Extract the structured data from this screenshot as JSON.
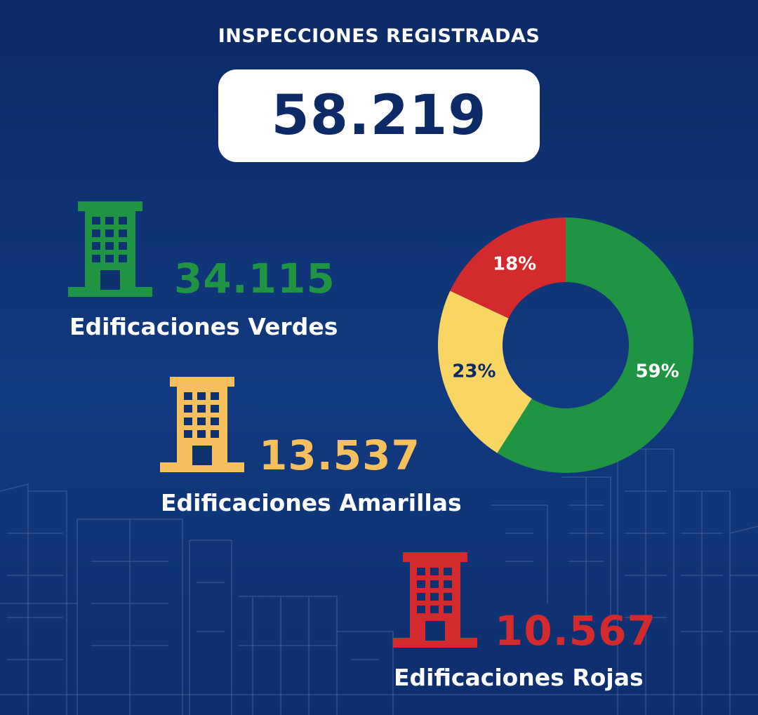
{
  "title": "INSPECCIONES REGISTRADAS",
  "total": "58.219",
  "categories": [
    {
      "count": "34.115",
      "label": "Edificaciones Verdes",
      "color": "#1f9443",
      "icon": "building-icon"
    },
    {
      "count": "13.537",
      "label": "Edificaciones Amarillas",
      "color": "#f6c05c",
      "icon": "building-icon"
    },
    {
      "count": "10.567",
      "label": "Edificaciones Rojas",
      "color": "#d32a2e",
      "icon": "building-icon"
    }
  ],
  "chart_data": {
    "type": "pie",
    "donut": true,
    "slices": [
      {
        "label": "59%",
        "value": 59,
        "color": "#1f9443"
      },
      {
        "label": "23%",
        "value": 23,
        "color": "#f9d564"
      },
      {
        "label": "18%",
        "value": 18,
        "color": "#d32a2e"
      }
    ]
  }
}
